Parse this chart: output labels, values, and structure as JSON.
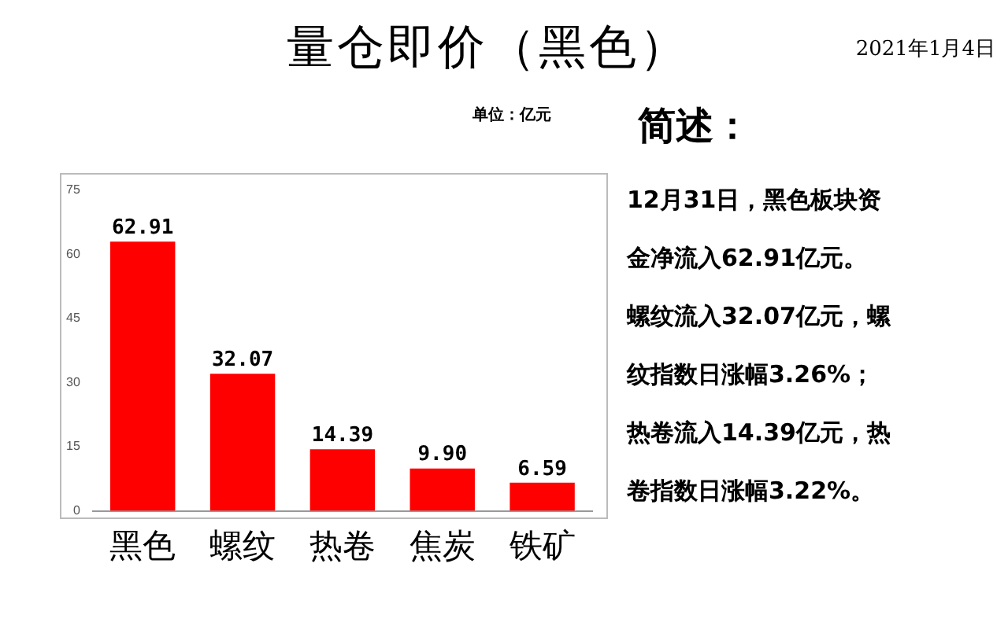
{
  "chart_data": {
    "type": "bar",
    "title": "量仓即价（黑色）",
    "categories": [
      "黑色",
      "螺纹",
      "热卷",
      "焦炭",
      "铁矿"
    ],
    "values": [
      62.91,
      32.07,
      14.39,
      9.9,
      6.59
    ],
    "value_labels": [
      "62.91",
      "32.07",
      "14.39",
      "9.90",
      "6.59"
    ],
    "color": "#ff0000",
    "ylim": [
      0,
      75
    ],
    "yticks": [
      0,
      15,
      30,
      45,
      60,
      75
    ],
    "grid": false,
    "annotations": [
      "2021年1月4日",
      "单位：亿元",
      "简述：",
      "12月31日，黑色板块资",
      "金净流入62.91亿元。",
      "螺纹流入32.07亿元，螺",
      "纹指数日涨幅3.26%；",
      "热卷流入14.39亿元，热",
      "卷指数日涨幅3.22%。"
    ]
  }
}
